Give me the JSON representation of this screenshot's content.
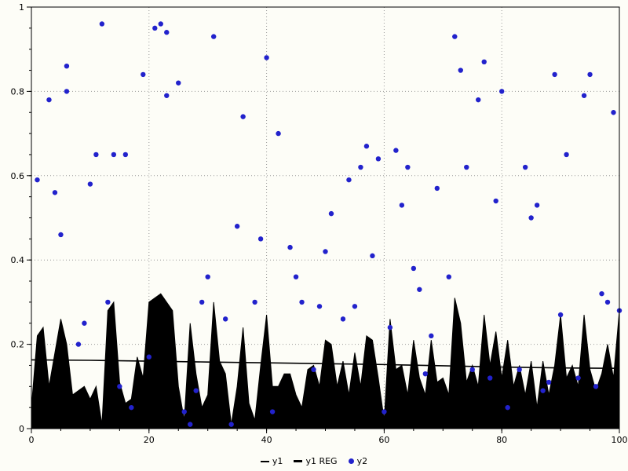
{
  "chart_data": {
    "type": "mixed",
    "title": "",
    "xlabel": "",
    "ylabel": "",
    "xlim": [
      0,
      100
    ],
    "ylim": [
      0,
      1
    ],
    "x_ticks": [
      0,
      20,
      40,
      60,
      80,
      100
    ],
    "x_tick_labels": [
      "0",
      "20",
      "40",
      "60",
      "80",
      "100"
    ],
    "y_ticks": [
      0,
      0.2,
      0.4,
      0.6,
      0.8,
      1
    ],
    "y_tick_labels": [
      "0",
      "0.2",
      "0.4",
      "0.6",
      "0.8",
      "1"
    ],
    "x_minor_step": 5,
    "y_minor_step": 0.05,
    "grid": "dotted",
    "grid_color": "#999999",
    "frame_color": "#000000",
    "background_color": "#fdfdf7",
    "legend_position": "bottom-center",
    "series": [
      {
        "name": "y1",
        "type": "area",
        "color": "#000000",
        "x": [
          0,
          1,
          2,
          3,
          4,
          5,
          6,
          7,
          8,
          9,
          10,
          11,
          12,
          13,
          14,
          15,
          16,
          17,
          18,
          19,
          20,
          21,
          22,
          23,
          24,
          25,
          26,
          27,
          28,
          29,
          30,
          31,
          32,
          33,
          34,
          35,
          36,
          37,
          38,
          39,
          40,
          41,
          42,
          43,
          44,
          45,
          46,
          47,
          48,
          49,
          50,
          51,
          52,
          53,
          54,
          55,
          56,
          57,
          58,
          59,
          60,
          61,
          62,
          63,
          64,
          65,
          66,
          67,
          68,
          69,
          70,
          71,
          72,
          73,
          74,
          75,
          76,
          77,
          78,
          79,
          80,
          81,
          82,
          83,
          84,
          85,
          86,
          87,
          88,
          89,
          90,
          91,
          92,
          93,
          94,
          95,
          96,
          97,
          98,
          99,
          100
        ],
        "values": [
          0.05,
          0.22,
          0.24,
          0.1,
          0.18,
          0.26,
          0.2,
          0.08,
          0.09,
          0.1,
          0.07,
          0.1,
          0.01,
          0.28,
          0.3,
          0.11,
          0.06,
          0.07,
          0.17,
          0.12,
          0.3,
          0.31,
          0.32,
          0.3,
          0.28,
          0.1,
          0.02,
          0.25,
          0.13,
          0.05,
          0.08,
          0.3,
          0.16,
          0.13,
          0.01,
          0.1,
          0.24,
          0.06,
          0.02,
          0.15,
          0.27,
          0.1,
          0.1,
          0.13,
          0.13,
          0.08,
          0.05,
          0.14,
          0.15,
          0.1,
          0.21,
          0.2,
          0.1,
          0.16,
          0.08,
          0.18,
          0.1,
          0.22,
          0.21,
          0.12,
          0.02,
          0.26,
          0.14,
          0.15,
          0.08,
          0.21,
          0.12,
          0.08,
          0.21,
          0.11,
          0.12,
          0.08,
          0.31,
          0.25,
          0.11,
          0.15,
          0.1,
          0.27,
          0.15,
          0.23,
          0.12,
          0.21,
          0.1,
          0.15,
          0.08,
          0.16,
          0.05,
          0.16,
          0.08,
          0.15,
          0.27,
          0.12,
          0.15,
          0.1,
          0.27,
          0.14,
          0.09,
          0.13,
          0.2,
          0.12,
          0.28
        ]
      },
      {
        "name": "y1 REG",
        "type": "line",
        "color": "#000000",
        "x": [
          0,
          10,
          20,
          30,
          40,
          50,
          60,
          70,
          80,
          90,
          100
        ],
        "values": [
          0.163,
          0.162,
          0.16,
          0.158,
          0.156,
          0.154,
          0.152,
          0.149,
          0.146,
          0.144,
          0.143
        ]
      },
      {
        "name": "y2",
        "type": "scatter",
        "color": "#2222cc",
        "points": [
          [
            1,
            0.59
          ],
          [
            3,
            0.78
          ],
          [
            4,
            0.56
          ],
          [
            5,
            0.46
          ],
          [
            6,
            0.8
          ],
          [
            6,
            0.86
          ],
          [
            8,
            0.2
          ],
          [
            9,
            0.25
          ],
          [
            10,
            0.58
          ],
          [
            11,
            0.65
          ],
          [
            12,
            0.96
          ],
          [
            13,
            0.3
          ],
          [
            14,
            0.65
          ],
          [
            15,
            0.1
          ],
          [
            16,
            0.65
          ],
          [
            17,
            0.05
          ],
          [
            19,
            0.84
          ],
          [
            20,
            0.17
          ],
          [
            21,
            0.95
          ],
          [
            22,
            0.96
          ],
          [
            23,
            0.94
          ],
          [
            23,
            0.79
          ],
          [
            25,
            0.82
          ],
          [
            26,
            0.04
          ],
          [
            27,
            0.01
          ],
          [
            28,
            0.09
          ],
          [
            29,
            0.3
          ],
          [
            30,
            0.36
          ],
          [
            31,
            0.93
          ],
          [
            33,
            0.26
          ],
          [
            34,
            0.01
          ],
          [
            35,
            0.48
          ],
          [
            36,
            0.74
          ],
          [
            38,
            0.3
          ],
          [
            39,
            0.45
          ],
          [
            40,
            0.88
          ],
          [
            41,
            0.04
          ],
          [
            42,
            0.7
          ],
          [
            44,
            0.43
          ],
          [
            45,
            0.36
          ],
          [
            46,
            0.3
          ],
          [
            48,
            0.14
          ],
          [
            49,
            0.29
          ],
          [
            50,
            0.42
          ],
          [
            51,
            0.51
          ],
          [
            53,
            0.26
          ],
          [
            54,
            0.59
          ],
          [
            55,
            0.29
          ],
          [
            56,
            0.62
          ],
          [
            57,
            0.67
          ],
          [
            58,
            0.41
          ],
          [
            59,
            0.64
          ],
          [
            60,
            0.04
          ],
          [
            61,
            0.24
          ],
          [
            62,
            0.66
          ],
          [
            63,
            0.53
          ],
          [
            64,
            0.62
          ],
          [
            65,
            0.38
          ],
          [
            66,
            0.33
          ],
          [
            67,
            0.13
          ],
          [
            68,
            0.22
          ],
          [
            69,
            0.57
          ],
          [
            71,
            0.36
          ],
          [
            72,
            0.93
          ],
          [
            73,
            0.85
          ],
          [
            74,
            0.62
          ],
          [
            75,
            0.14
          ],
          [
            76,
            0.78
          ],
          [
            77,
            0.87
          ],
          [
            78,
            0.12
          ],
          [
            79,
            0.54
          ],
          [
            80,
            0.8
          ],
          [
            81,
            0.05
          ],
          [
            83,
            0.14
          ],
          [
            84,
            0.62
          ],
          [
            85,
            0.5
          ],
          [
            86,
            0.53
          ],
          [
            87,
            0.09
          ],
          [
            88,
            0.11
          ],
          [
            89,
            0.84
          ],
          [
            90,
            0.27
          ],
          [
            91,
            0.65
          ],
          [
            93,
            0.12
          ],
          [
            94,
            0.79
          ],
          [
            95,
            0.84
          ],
          [
            96,
            0.1
          ],
          [
            97,
            0.32
          ],
          [
            98,
            0.3
          ],
          [
            99,
            0.75
          ],
          [
            100,
            0.28
          ]
        ]
      }
    ]
  },
  "legend": {
    "items": [
      {
        "label": "y1",
        "swatch": "thin-line"
      },
      {
        "label": "y1 REG",
        "swatch": "thick-line"
      },
      {
        "label": "y2",
        "swatch": "dot"
      }
    ]
  }
}
